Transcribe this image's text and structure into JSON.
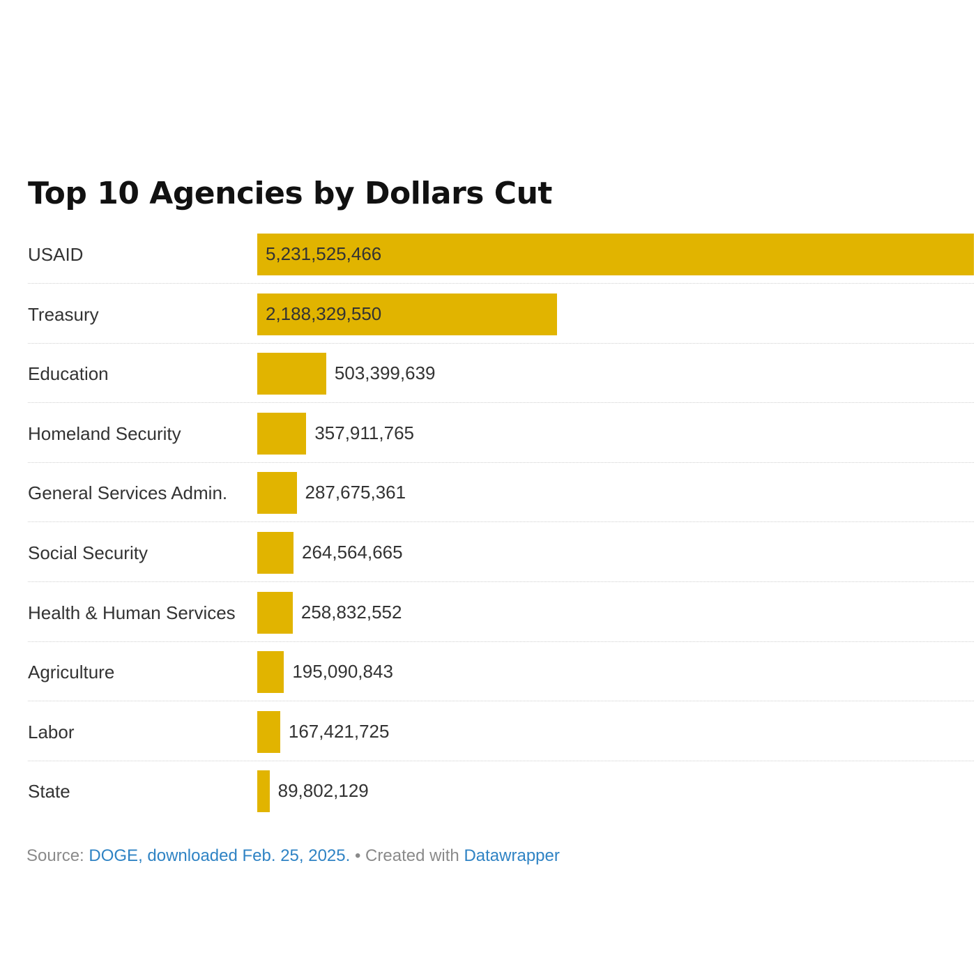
{
  "chart_data": {
    "type": "bar",
    "orientation": "horizontal",
    "title": "Top 10 Agencies by Dollars Cut",
    "categories": [
      "USAID",
      "Treasury",
      "Education",
      "Homeland Security",
      "General Services Admin.",
      "Social Security",
      "Health & Human Services",
      "Agriculture",
      "Labor",
      "State"
    ],
    "values": [
      5231525466,
      2188329550,
      503399639,
      357911765,
      287675361,
      264564665,
      258832552,
      195090843,
      167421725,
      89802129
    ],
    "value_labels": [
      "5,231,525,466",
      "2,188,329,550",
      "503,399,639",
      "357,911,765",
      "287,675,361",
      "264,564,665",
      "258,832,552",
      "195,090,843",
      "167,421,725",
      "89,802,129"
    ],
    "xlim": [
      0,
      5231525466
    ],
    "bar_color": "#e1b400",
    "grid": false,
    "legend": "none"
  },
  "footer": {
    "source_label": "Source:",
    "source_link": "DOGE, downloaded Feb. 25, 2025.",
    "separator": "•",
    "created_label": "Created with",
    "created_link": "Datawrapper"
  },
  "colors": {
    "bar": "#e1b400",
    "link": "#2f83c4",
    "footer_text": "#8a8a8a"
  }
}
